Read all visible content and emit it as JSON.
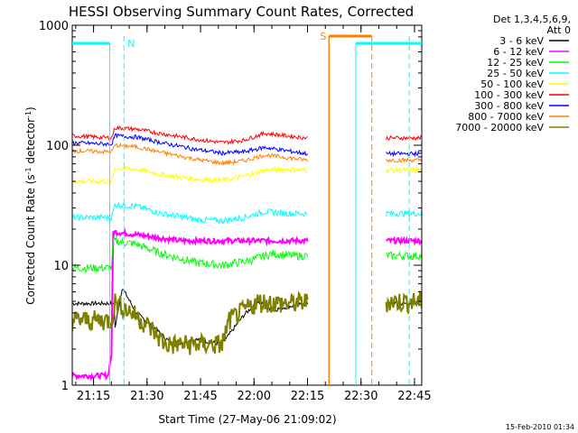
{
  "chart_data": {
    "type": "line",
    "title": "HESSI Observing Summary Count Rates, Corrected",
    "xlabel": "Start Time (27-May-06 21:09:02)",
    "ylabel": "Corrected Count Rate (s-1 detector-1)",
    "ylabel_parts": [
      "Corrected Count Rate (s",
      "-1",
      " detector",
      "-1",
      ")"
    ],
    "yscale": "log",
    "ylim": [
      1,
      1000
    ],
    "xlim_minutes": [
      0,
      98
    ],
    "x_ticks": [
      {
        "label": "21:15",
        "t": 5.97
      },
      {
        "label": "21:30",
        "t": 20.97
      },
      {
        "label": "21:45",
        "t": 35.97
      },
      {
        "label": "22:00",
        "t": 50.97
      },
      {
        "label": "22:15",
        "t": 65.97
      },
      {
        "label": "22:30",
        "t": 80.97
      },
      {
        "label": "22:45",
        "t": 95.97
      }
    ],
    "y_ticks": [
      {
        "label": "1",
        "v": 1
      },
      {
        "label": "10",
        "v": 10
      },
      {
        "label": "100",
        "v": 100
      },
      {
        "label": "1000",
        "v": 1000
      }
    ],
    "legend_header": [
      "Det 1,3,4,5,6,9,",
      "Att 0"
    ],
    "legend_position": "right",
    "series": [
      {
        "name": "3 - 6 keV",
        "color": "#000000",
        "points": [
          [
            12,
            3
          ],
          [
            14,
            6.5
          ],
          [
            18,
            4
          ],
          [
            22,
            3.2
          ],
          [
            28,
            2.2
          ],
          [
            35,
            2.4
          ],
          [
            42,
            2.2
          ],
          [
            48,
            3.8
          ],
          [
            52,
            5
          ],
          [
            56,
            4.2
          ],
          [
            60,
            4.5
          ],
          [
            66,
            4.8
          ]
        ]
      },
      {
        "name": "6 - 12 keV",
        "color": "#ff00ff",
        "points": [
          [
            0,
            1.2
          ],
          [
            10,
            1.2
          ],
          [
            11,
            1.8
          ],
          [
            11.5,
            19
          ],
          [
            18,
            18
          ],
          [
            24,
            17
          ],
          [
            30,
            16
          ],
          [
            40,
            16
          ],
          [
            50,
            16
          ],
          [
            60,
            16
          ],
          [
            66,
            16
          ]
        ]
      },
      {
        "name": "12 - 25 keV",
        "color": "#00ff00",
        "points": [
          [
            0,
            9.5
          ],
          [
            11,
            9.5
          ],
          [
            11.5,
            16
          ],
          [
            18,
            15
          ],
          [
            25,
            12.5
          ],
          [
            35,
            10.5
          ],
          [
            42,
            10
          ],
          [
            50,
            11
          ],
          [
            56,
            12.5
          ],
          [
            62,
            12
          ],
          [
            66,
            12
          ]
        ]
      },
      {
        "name": "25 - 50 keV",
        "color": "#00ffff",
        "points": [
          [
            0,
            25
          ],
          [
            11,
            25
          ],
          [
            12,
            32
          ],
          [
            18,
            31
          ],
          [
            25,
            27
          ],
          [
            35,
            24
          ],
          [
            42,
            23.5
          ],
          [
            48,
            25
          ],
          [
            54,
            28
          ],
          [
            60,
            27
          ],
          [
            66,
            27
          ]
        ]
      },
      {
        "name": "50 - 100 keV",
        "color": "#ffff00",
        "points": [
          [
            0,
            50
          ],
          [
            11,
            50
          ],
          [
            12,
            65
          ],
          [
            18,
            63
          ],
          [
            25,
            57
          ],
          [
            35,
            52
          ],
          [
            42,
            51
          ],
          [
            48,
            55
          ],
          [
            54,
            62
          ],
          [
            60,
            63
          ],
          [
            66,
            62
          ]
        ]
      },
      {
        "name": "100 - 300 keV",
        "color": "#ff0000",
        "points": [
          [
            0,
            120
          ],
          [
            11,
            115
          ],
          [
            12,
            140
          ],
          [
            18,
            136
          ],
          [
            25,
            125
          ],
          [
            35,
            112
          ],
          [
            42,
            105
          ],
          [
            48,
            110
          ],
          [
            54,
            126
          ],
          [
            60,
            120
          ],
          [
            66,
            115
          ]
        ]
      },
      {
        "name": "300 - 800 keV",
        "color": "#0000ff",
        "points": [
          [
            0,
            105
          ],
          [
            11,
            102
          ],
          [
            12,
            120
          ],
          [
            18,
            117
          ],
          [
            25,
            105
          ],
          [
            35,
            92
          ],
          [
            42,
            86
          ],
          [
            48,
            88
          ],
          [
            54,
            96
          ],
          [
            60,
            90
          ],
          [
            66,
            85
          ]
        ]
      },
      {
        "name": "800 - 7000 keV",
        "color": "#ff8000",
        "points": [
          [
            0,
            90
          ],
          [
            11,
            88
          ],
          [
            12,
            100
          ],
          [
            18,
            97
          ],
          [
            25,
            87
          ],
          [
            35,
            76
          ],
          [
            42,
            71
          ],
          [
            48,
            74
          ],
          [
            54,
            83
          ],
          [
            60,
            79
          ],
          [
            66,
            75
          ]
        ]
      },
      {
        "name": "7000 - 20000 keV",
        "color": "#808000",
        "points": [
          [
            0,
            3.5
          ],
          [
            11,
            3.5
          ],
          [
            12,
            5
          ],
          [
            18,
            3.8
          ],
          [
            22,
            3
          ],
          [
            26,
            2.2
          ],
          [
            42,
            2.2
          ],
          [
            44,
            3.5
          ],
          [
            52,
            5
          ],
          [
            60,
            4.8
          ],
          [
            66,
            5
          ]
        ]
      }
    ],
    "annotations": [
      {
        "label": "N",
        "color": "#00ffff"
      },
      {
        "label": "S",
        "color": "#ff8000"
      }
    ]
  },
  "footer": {
    "date": "15-Feb-2010 01:34"
  }
}
